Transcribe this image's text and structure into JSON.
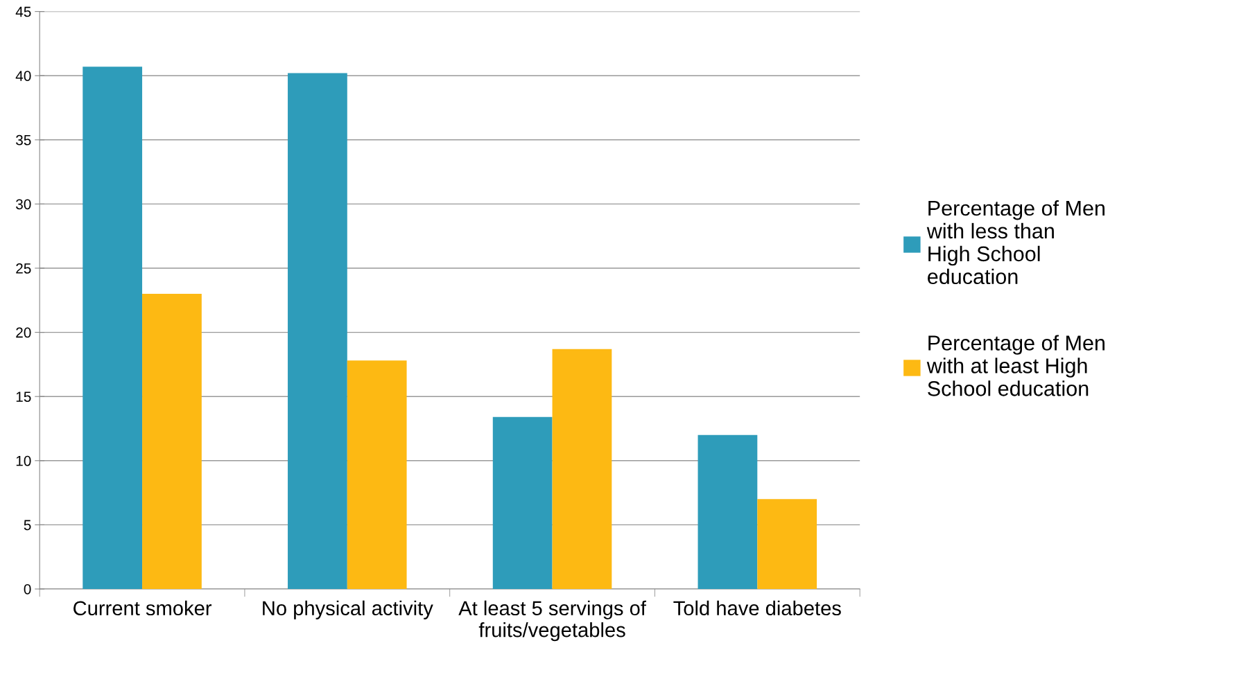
{
  "chart_data": {
    "type": "bar",
    "categories": [
      "Current smoker",
      "No physical activity",
      "At least 5 servings of fruits/vegetables",
      "Told have diabetes"
    ],
    "series": [
      {
        "name": "Percentage of Men  with less than High School education",
        "color": "#2e9cba",
        "values": [
          40.7,
          40.2,
          13.4,
          12.0
        ]
      },
      {
        "name": "Percentage of Men  with at least High School education",
        "color": "#fdb913",
        "values": [
          23.0,
          17.8,
          18.7,
          7.0
        ]
      }
    ],
    "ylim": [
      0,
      45
    ],
    "yticks": [
      0,
      5,
      10,
      15,
      20,
      25,
      30,
      35,
      40,
      45
    ],
    "grid": "y",
    "legend": "right"
  }
}
